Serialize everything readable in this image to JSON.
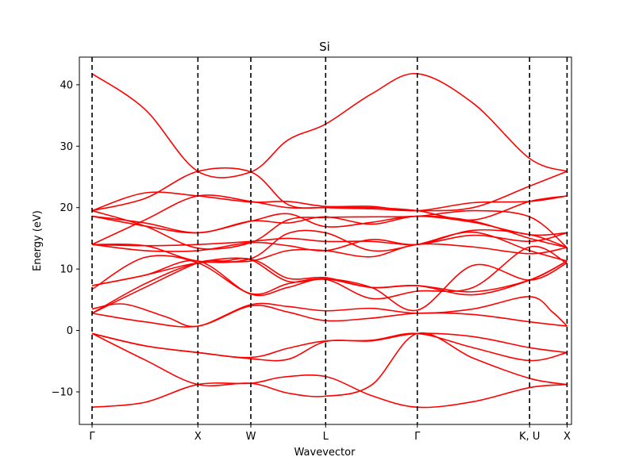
{
  "chart_data": {
    "type": "line",
    "title": "Si",
    "xlabel": "Wavevector",
    "ylabel": "Energy (eV)",
    "ylim": [
      -15.3,
      44.5
    ],
    "yticks": [
      -10,
      0,
      10,
      20,
      30,
      40
    ],
    "ytick_labels": [
      "−10",
      "0",
      "10",
      "20",
      "30",
      "40"
    ],
    "xlim": [
      -0.12,
      4.53
    ],
    "high_symmetry_points": [
      {
        "label": "Γ",
        "x": 0.0
      },
      {
        "label": "X",
        "x": 1.0
      },
      {
        "label": "W",
        "x": 1.5
      },
      {
        "label": "L",
        "x": 2.207
      },
      {
        "label": "Γ",
        "x": 3.073
      },
      {
        "label": "K, U",
        "x": 4.134
      },
      {
        "label": "X",
        "x": 4.488
      }
    ],
    "grid": false,
    "line_color": "#ff0000",
    "vline_color": "#000000",
    "vline_style": "dashed",
    "series": [
      {
        "points": [
          [
            0,
            -12.5
          ],
          [
            0.5,
            -11.7
          ],
          [
            1.0,
            -8.8
          ],
          [
            1.5,
            -8.6
          ],
          [
            1.8,
            -7.6
          ],
          [
            2.207,
            -7.5
          ],
          [
            2.64,
            -10.6
          ],
          [
            3.073,
            -12.5
          ],
          [
            3.6,
            -11.6
          ],
          [
            4.134,
            -9.3
          ],
          [
            4.488,
            -8.8
          ]
        ]
      },
      {
        "points": [
          [
            0,
            -0.5
          ],
          [
            0.5,
            -4.8
          ],
          [
            1.0,
            -8.8
          ],
          [
            1.5,
            -8.6
          ],
          [
            1.85,
            -10.2
          ],
          [
            2.207,
            -10.7
          ],
          [
            2.64,
            -8.9
          ],
          [
            3.073,
            -0.5
          ],
          [
            3.6,
            -4.5
          ],
          [
            4.134,
            -7.8
          ],
          [
            4.488,
            -8.8
          ]
        ]
      },
      {
        "points": [
          [
            0,
            -0.5
          ],
          [
            0.5,
            -2.5
          ],
          [
            1.0,
            -3.6
          ],
          [
            1.5,
            -4.4
          ],
          [
            1.85,
            -2.9
          ],
          [
            2.207,
            -1.7
          ],
          [
            2.64,
            -1.6
          ],
          [
            3.073,
            -0.5
          ],
          [
            3.6,
            -2.8
          ],
          [
            4.134,
            -4.9
          ],
          [
            4.488,
            -3.6
          ]
        ]
      },
      {
        "points": [
          [
            0,
            -0.5
          ],
          [
            0.5,
            -2.5
          ],
          [
            1.0,
            -3.6
          ],
          [
            1.5,
            -4.6
          ],
          [
            1.85,
            -4.7
          ],
          [
            2.207,
            -1.8
          ],
          [
            2.64,
            -1.7
          ],
          [
            3.073,
            -0.5
          ],
          [
            3.6,
            -1.0
          ],
          [
            4.134,
            -2.8
          ],
          [
            4.488,
            -3.6
          ]
        ]
      },
      {
        "points": [
          [
            0,
            2.8
          ],
          [
            0.5,
            1.4
          ],
          [
            1.0,
            0.7
          ],
          [
            1.5,
            4.0
          ],
          [
            1.85,
            3.0
          ],
          [
            2.207,
            1.6
          ],
          [
            2.64,
            2.0
          ],
          [
            3.073,
            2.8
          ],
          [
            3.6,
            2.6
          ],
          [
            4.134,
            1.4
          ],
          [
            4.488,
            0.7
          ]
        ]
      },
      {
        "points": [
          [
            0,
            3.5
          ],
          [
            0.3,
            4.3
          ],
          [
            0.7,
            2.2
          ],
          [
            1.0,
            0.7
          ],
          [
            1.5,
            4.2
          ],
          [
            1.85,
            3.9
          ],
          [
            2.207,
            3.2
          ],
          [
            2.64,
            3.6
          ],
          [
            3.073,
            2.8
          ],
          [
            3.6,
            3.5
          ],
          [
            4.134,
            5.5
          ],
          [
            4.35,
            3.0
          ],
          [
            4.488,
            0.7
          ]
        ]
      },
      {
        "points": [
          [
            0,
            2.8
          ],
          [
            0.5,
            7.0
          ],
          [
            1.0,
            11.0
          ],
          [
            1.25,
            11.3
          ],
          [
            1.5,
            11.5
          ],
          [
            1.85,
            8.0
          ],
          [
            2.207,
            8.4
          ],
          [
            2.64,
            7.0
          ],
          [
            3.073,
            7.3
          ],
          [
            3.6,
            5.8
          ],
          [
            4.134,
            8.2
          ],
          [
            4.488,
            11.3
          ]
        ]
      },
      {
        "points": [
          [
            0,
            2.8
          ],
          [
            0.5,
            7.6
          ],
          [
            1.0,
            11.0
          ],
          [
            1.5,
            11.6
          ],
          [
            1.85,
            8.5
          ],
          [
            2.207,
            8.6
          ],
          [
            2.64,
            7.0
          ],
          [
            3.073,
            7.3
          ],
          [
            3.6,
            6.3
          ],
          [
            4.134,
            8.2
          ],
          [
            4.488,
            11.3
          ]
        ]
      },
      {
        "points": [
          [
            0,
            6.7
          ],
          [
            0.5,
            11.9
          ],
          [
            1.0,
            11.0
          ],
          [
            1.5,
            6.0
          ],
          [
            1.85,
            7.6
          ],
          [
            2.207,
            8.4
          ],
          [
            2.64,
            7.0
          ],
          [
            3.073,
            3.3
          ],
          [
            3.6,
            10.6
          ],
          [
            4.134,
            8.2
          ],
          [
            4.488,
            11.0
          ]
        ]
      },
      {
        "points": [
          [
            0,
            7.3
          ],
          [
            0.5,
            9.0
          ],
          [
            1.0,
            11.3
          ],
          [
            1.5,
            5.9
          ],
          [
            1.85,
            7.0
          ],
          [
            2.207,
            8.3
          ],
          [
            2.64,
            5.2
          ],
          [
            3.073,
            6.4
          ],
          [
            3.6,
            7.0
          ],
          [
            4.134,
            13.6
          ],
          [
            4.488,
            10.9
          ]
        ]
      },
      {
        "points": [
          [
            0,
            7.3
          ],
          [
            0.5,
            9.0
          ],
          [
            1.0,
            11.0
          ],
          [
            1.5,
            11.3
          ],
          [
            1.85,
            13.0
          ],
          [
            2.207,
            13.0
          ],
          [
            2.64,
            12.0
          ],
          [
            3.073,
            14.0
          ],
          [
            3.6,
            13.6
          ],
          [
            4.134,
            12.5
          ],
          [
            4.488,
            13.5
          ]
        ]
      },
      {
        "points": [
          [
            0,
            14.0
          ],
          [
            0.5,
            13.8
          ],
          [
            1.0,
            11.3
          ],
          [
            1.5,
            11.7
          ],
          [
            1.85,
            15.8
          ],
          [
            2.207,
            15.9
          ],
          [
            2.64,
            13.0
          ],
          [
            3.073,
            14.0
          ],
          [
            3.6,
            16.0
          ],
          [
            4.134,
            13.0
          ],
          [
            4.488,
            11.3
          ]
        ]
      },
      {
        "points": [
          [
            0,
            14.0
          ],
          [
            0.5,
            13.0
          ],
          [
            1.0,
            13.0
          ],
          [
            1.5,
            14.3
          ],
          [
            1.85,
            13.8
          ],
          [
            2.207,
            13.0
          ],
          [
            2.64,
            14.8
          ],
          [
            3.073,
            14.0
          ],
          [
            3.6,
            16.3
          ],
          [
            4.134,
            15.6
          ],
          [
            4.488,
            13.5
          ]
        ]
      },
      {
        "points": [
          [
            0,
            14.0
          ],
          [
            0.5,
            13.8
          ],
          [
            1.0,
            14.0
          ],
          [
            1.5,
            14.5
          ],
          [
            1.85,
            15.0
          ],
          [
            2.207,
            14.5
          ],
          [
            2.64,
            14.5
          ],
          [
            3.073,
            14.0
          ],
          [
            3.6,
            15.5
          ],
          [
            4.134,
            14.5
          ],
          [
            4.488,
            15.9
          ]
        ]
      },
      {
        "points": [
          [
            0,
            14.0
          ],
          [
            0.5,
            18.0
          ],
          [
            1.0,
            21.9
          ],
          [
            1.5,
            21.0
          ],
          [
            1.85,
            20.0
          ],
          [
            2.207,
            20.0
          ],
          [
            2.64,
            20.0
          ],
          [
            3.073,
            19.5
          ],
          [
            3.6,
            18.0
          ],
          [
            4.134,
            21.0
          ],
          [
            4.488,
            21.9
          ]
        ]
      },
      {
        "points": [
          [
            0,
            18.6
          ],
          [
            0.5,
            17.0
          ],
          [
            1.0,
            15.9
          ],
          [
            1.5,
            17.8
          ],
          [
            1.85,
            19.0
          ],
          [
            2.207,
            16.9
          ],
          [
            2.64,
            17.6
          ],
          [
            3.073,
            18.6
          ],
          [
            3.6,
            17.6
          ],
          [
            4.134,
            15.6
          ],
          [
            4.488,
            15.9
          ]
        ]
      },
      {
        "points": [
          [
            0,
            18.6
          ],
          [
            0.5,
            17.5
          ],
          [
            1.0,
            15.9
          ],
          [
            1.5,
            17.8
          ],
          [
            1.85,
            17.5
          ],
          [
            2.207,
            18.5
          ],
          [
            2.64,
            17.3
          ],
          [
            3.073,
            18.6
          ],
          [
            3.6,
            17.8
          ],
          [
            4.134,
            15.0
          ],
          [
            4.488,
            13.5
          ]
        ]
      },
      {
        "points": [
          [
            0,
            19.5
          ],
          [
            0.5,
            17.0
          ],
          [
            1.0,
            13.4
          ],
          [
            1.5,
            14.3
          ],
          [
            1.85,
            18.0
          ],
          [
            2.207,
            18.4
          ],
          [
            2.64,
            18.5
          ],
          [
            3.073,
            18.6
          ],
          [
            3.6,
            19.5
          ],
          [
            4.134,
            18.5
          ],
          [
            4.488,
            13.5
          ]
        ]
      },
      {
        "points": [
          [
            0,
            19.5
          ],
          [
            0.5,
            22.4
          ],
          [
            1.0,
            21.9
          ],
          [
            1.5,
            20.9
          ],
          [
            1.85,
            21.0
          ],
          [
            2.207,
            20.2
          ],
          [
            2.64,
            20.2
          ],
          [
            3.073,
            19.5
          ],
          [
            3.6,
            20.8
          ],
          [
            4.134,
            21.0
          ],
          [
            4.488,
            21.9
          ]
        ]
      },
      {
        "points": [
          [
            0,
            19.5
          ],
          [
            0.5,
            21.5
          ],
          [
            1.0,
            25.9
          ],
          [
            1.5,
            25.8
          ],
          [
            1.85,
            20.5
          ],
          [
            2.207,
            20.0
          ],
          [
            2.64,
            19.8
          ],
          [
            3.073,
            19.5
          ],
          [
            3.6,
            20.0
          ],
          [
            4.134,
            23.5
          ],
          [
            4.488,
            25.9
          ]
        ]
      },
      {
        "points": [
          [
            0,
            41.8
          ],
          [
            0.5,
            36.0
          ],
          [
            1.0,
            25.9
          ],
          [
            1.5,
            25.8
          ],
          [
            1.85,
            31.0
          ],
          [
            2.207,
            33.6
          ],
          [
            2.64,
            38.5
          ],
          [
            3.073,
            41.8
          ],
          [
            3.6,
            37.0
          ],
          [
            4.134,
            28.0
          ],
          [
            4.488,
            25.9
          ]
        ]
      }
    ]
  }
}
